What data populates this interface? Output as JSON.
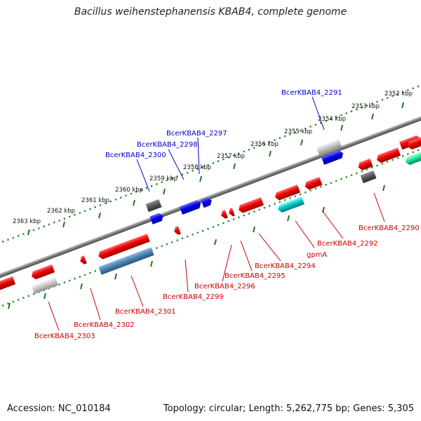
{
  "title": "Bacillus weihenstephanensis KBAB4, complete genome",
  "footer": {
    "accession": "Accession: NC_010184",
    "topology": "Topology: circular; Length: 5,262,775 bp; Genes: 5,305"
  },
  "colors": {
    "forward_gene": "#0000ff",
    "reverse_gene": "#dd0000",
    "trna_gene": "#00c8c8",
    "pseudo_gene": "#888888",
    "scale_ticks": "#1a8a1a",
    "backbone": "#8a8a8a"
  },
  "scale_labels": [
    "2352 kbp",
    "2353 kbp",
    "2354 kbp",
    "2355 kbp",
    "2356 kbp",
    "2357 kbp",
    "2358 kbp",
    "2359 kbp",
    "2360 kbp",
    "2361 kbp",
    "2362 kbp",
    "2363 kbp"
  ],
  "gene_labels": [
    {
      "name": "BcerKBAB4_2291",
      "strand": "forward"
    },
    {
      "name": "BcerKBAB4_2297",
      "strand": "forward"
    },
    {
      "name": "BcerKBAB4_2298",
      "strand": "forward"
    },
    {
      "name": "BcerKBAB4_2300",
      "strand": "forward"
    },
    {
      "name": "BcerKBAB4_2290",
      "strand": "reverse"
    },
    {
      "name": "BcerKBAB4_2292",
      "strand": "reverse"
    },
    {
      "name": "gpmA",
      "strand": "reverse"
    },
    {
      "name": "BcerKBAB4_2294",
      "strand": "reverse"
    },
    {
      "name": "BcerKBAB4_2295",
      "strand": "reverse"
    },
    {
      "name": "BcerKBAB4_2296",
      "strand": "reverse"
    },
    {
      "name": "BcerKBAB4_2299",
      "strand": "reverse"
    },
    {
      "name": "BcerKBAB4_2301",
      "strand": "reverse"
    },
    {
      "name": "BcerKBAB4_2302",
      "strand": "reverse"
    },
    {
      "name": "BcerKBAB4_2303",
      "strand": "reverse"
    }
  ]
}
